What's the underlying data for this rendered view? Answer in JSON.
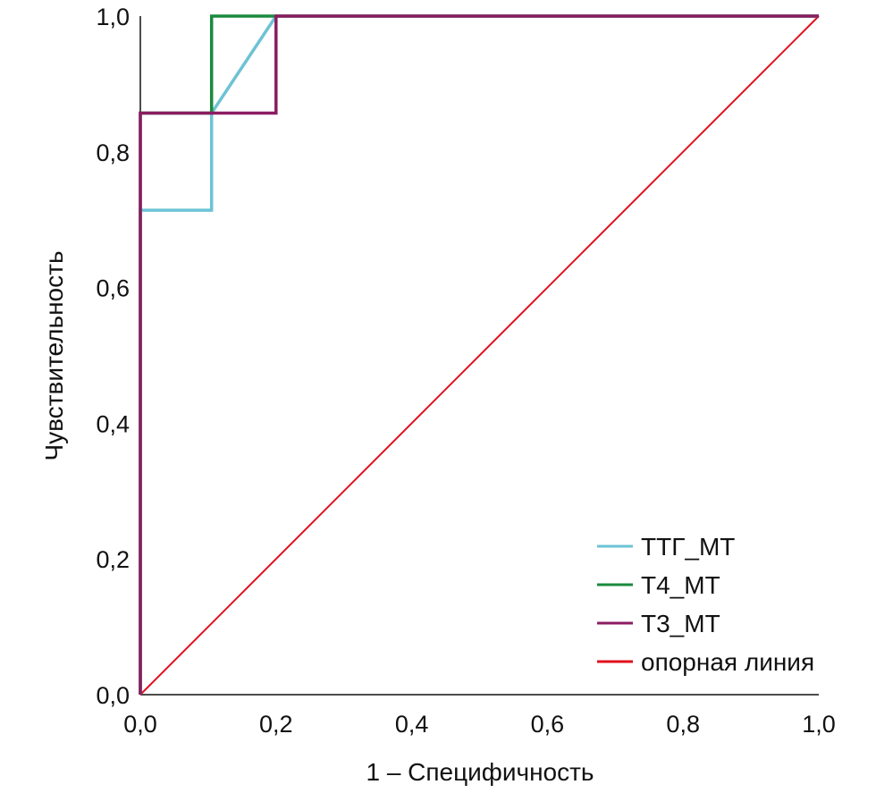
{
  "chart_data": {
    "type": "line",
    "xlabel": "1 – Специфичность",
    "ylabel": "Чувствительность",
    "xlim": [
      0,
      1
    ],
    "ylim": [
      0,
      1
    ],
    "x_ticks": [
      "0,0",
      "0,2",
      "0,4",
      "0,6",
      "0,8",
      "1,0"
    ],
    "y_ticks": [
      "0,0",
      "0,2",
      "0,4",
      "0,6",
      "0,8",
      "1,0"
    ],
    "x_tick_values": [
      0,
      0.2,
      0.4,
      0.6,
      0.8,
      1.0
    ],
    "y_tick_values": [
      0,
      0.2,
      0.4,
      0.6,
      0.8,
      1.0
    ],
    "grid": false,
    "legend_position": "bottom-right",
    "series": [
      {
        "name": "ТТГ_МТ",
        "color": "#6cc3d5",
        "points": [
          [
            0,
            0
          ],
          [
            0,
            0.714
          ],
          [
            0.105,
            0.714
          ],
          [
            0.105,
            0.857
          ],
          [
            0.2,
            1.0
          ],
          [
            1.0,
            1.0
          ]
        ]
      },
      {
        "name": "Т4_МТ",
        "color": "#1a8a3e",
        "points": [
          [
            0,
            0
          ],
          [
            0,
            0.857
          ],
          [
            0.105,
            0.857
          ],
          [
            0.105,
            1.0
          ],
          [
            1.0,
            1.0
          ]
        ]
      },
      {
        "name": "Т3_МТ",
        "color": "#8b1c62",
        "points": [
          [
            0,
            0
          ],
          [
            0,
            0.857
          ],
          [
            0.2,
            0.857
          ],
          [
            0.2,
            1.0
          ],
          [
            1.0,
            1.0
          ]
        ]
      },
      {
        "name": "опорная линия",
        "color": "#e0101e",
        "points": [
          [
            0,
            0
          ],
          [
            1.0,
            1.0
          ]
        ]
      }
    ]
  }
}
